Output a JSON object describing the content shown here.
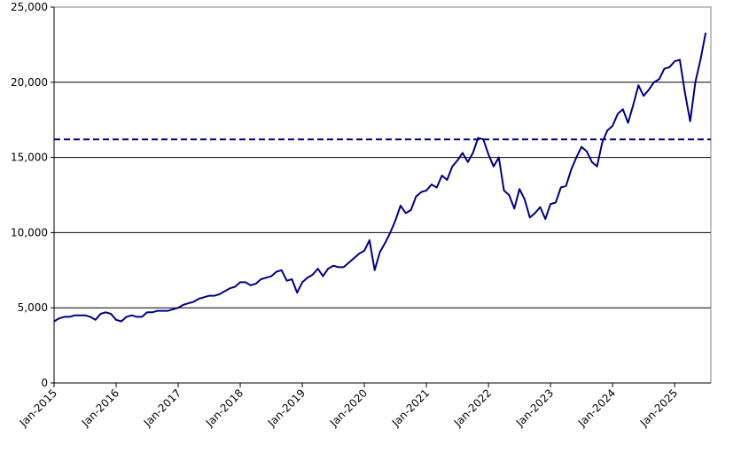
{
  "chart_data": {
    "type": "line",
    "x": [
      "2015-01",
      "2015-02",
      "2015-03",
      "2015-04",
      "2015-05",
      "2015-06",
      "2015-07",
      "2015-08",
      "2015-09",
      "2015-10",
      "2015-11",
      "2015-12",
      "2016-01",
      "2016-02",
      "2016-03",
      "2016-04",
      "2016-05",
      "2016-06",
      "2016-07",
      "2016-08",
      "2016-09",
      "2016-10",
      "2016-11",
      "2016-12",
      "2017-01",
      "2017-02",
      "2017-03",
      "2017-04",
      "2017-05",
      "2017-06",
      "2017-07",
      "2017-08",
      "2017-09",
      "2017-10",
      "2017-11",
      "2017-12",
      "2018-01",
      "2018-02",
      "2018-03",
      "2018-04",
      "2018-05",
      "2018-06",
      "2018-07",
      "2018-08",
      "2018-09",
      "2018-10",
      "2018-11",
      "2018-12",
      "2019-01",
      "2019-02",
      "2019-03",
      "2019-04",
      "2019-05",
      "2019-06",
      "2019-07",
      "2019-08",
      "2019-09",
      "2019-10",
      "2019-11",
      "2019-12",
      "2020-01",
      "2020-02",
      "2020-03",
      "2020-04",
      "2020-05",
      "2020-06",
      "2020-07",
      "2020-08",
      "2020-09",
      "2020-10",
      "2020-11",
      "2020-12",
      "2021-01",
      "2021-02",
      "2021-03",
      "2021-04",
      "2021-05",
      "2021-06",
      "2021-07",
      "2021-08",
      "2021-09",
      "2021-10",
      "2021-11",
      "2021-12",
      "2022-01",
      "2022-02",
      "2022-03",
      "2022-04",
      "2022-05",
      "2022-06",
      "2022-07",
      "2022-08",
      "2022-09",
      "2022-10",
      "2022-11",
      "2022-12",
      "2023-01",
      "2023-02",
      "2023-03",
      "2023-04",
      "2023-05",
      "2023-06",
      "2023-07",
      "2023-08",
      "2023-09",
      "2023-10",
      "2023-11",
      "2023-12",
      "2024-01",
      "2024-02",
      "2024-03",
      "2024-04",
      "2024-05",
      "2024-06",
      "2024-07",
      "2024-08",
      "2024-09",
      "2024-10",
      "2024-11",
      "2024-12",
      "2025-01",
      "2025-02",
      "2025-03",
      "2025-04",
      "2025-05",
      "2025-06",
      "2025-07"
    ],
    "series": [
      {
        "color": "#000080",
        "values": [
          4100,
          4300,
          4400,
          4400,
          4500,
          4500,
          4500,
          4400,
          4200,
          4600,
          4700,
          4600,
          4200,
          4100,
          4400,
          4500,
          4400,
          4400,
          4700,
          4700,
          4800,
          4800,
          4800,
          4900,
          5000,
          5200,
          5300,
          5400,
          5600,
          5700,
          5800,
          5800,
          5900,
          6100,
          6300,
          6400,
          6700,
          6700,
          6500,
          6600,
          6900,
          7000,
          7100,
          7400,
          7500,
          6800,
          6900,
          6000,
          6700,
          7000,
          7200,
          7600,
          7100,
          7600,
          7800,
          7700,
          7700,
          8000,
          8300,
          8600,
          8800,
          9500,
          7500,
          8700,
          9300,
          10000,
          10800,
          11800,
          11300,
          11500,
          12400,
          12700,
          12800,
          13200,
          13000,
          13800,
          13500,
          14400,
          14800,
          15300,
          14700,
          15300,
          16300,
          16200,
          15200,
          14400,
          15000,
          12800,
          12500,
          11600,
          12900,
          12200,
          11000,
          11300,
          11700,
          10900,
          11900,
          12000,
          13000,
          13100,
          14200,
          15000,
          15700,
          15400,
          14700,
          14400,
          16000,
          16800,
          17100,
          17900,
          18200,
          17300,
          18500,
          19800,
          19100,
          19500,
          20000,
          20200,
          20900,
          21000,
          21400,
          21500,
          19300,
          17400,
          20000,
          21500,
          23300
        ]
      }
    ],
    "reference_line": {
      "value": 16200,
      "color": "#000080",
      "dashed": true
    },
    "xlim": [
      "2015-01",
      "2025-08"
    ],
    "xticks": [
      {
        "value": "2015-01",
        "label": "Jan-2015"
      },
      {
        "value": "2016-01",
        "label": "Jan-2016"
      },
      {
        "value": "2017-01",
        "label": "Jan-2017"
      },
      {
        "value": "2018-01",
        "label": "Jan-2018"
      },
      {
        "value": "2019-01",
        "label": "Jan-2019"
      },
      {
        "value": "2020-01",
        "label": "Jan-2020"
      },
      {
        "value": "2021-01",
        "label": "Jan-2021"
      },
      {
        "value": "2022-01",
        "label": "Jan-2022"
      },
      {
        "value": "2023-01",
        "label": "Jan-2023"
      },
      {
        "value": "2024-01",
        "label": "Jan-2024"
      },
      {
        "value": "2025-01",
        "label": "Jan-2025"
      }
    ],
    "ylim": [
      0,
      25000
    ],
    "yticks": [
      0,
      {
        "value": 5000,
        "label": "5,000"
      },
      {
        "value": 10000,
        "label": "10,000"
      },
      {
        "value": 15000,
        "label": "15,000"
      },
      {
        "value": 20000,
        "label": "20,000"
      },
      {
        "value": 25000,
        "label": "25,000"
      }
    ],
    "grid": true
  }
}
